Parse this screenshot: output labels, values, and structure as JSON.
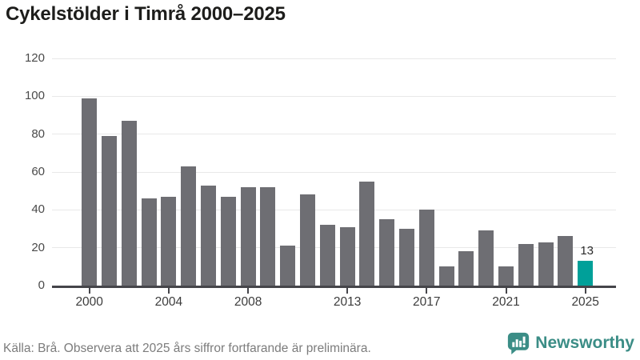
{
  "title": "Cykelstölder i Timrå 2000–2025",
  "chart_data": {
    "type": "bar",
    "title": "Cykelstölder i Timrå 2000–2025",
    "x": [
      2000,
      2001,
      2002,
      2003,
      2004,
      2005,
      2006,
      2007,
      2008,
      2009,
      2010,
      2011,
      2012,
      2013,
      2014,
      2015,
      2016,
      2017,
      2018,
      2019,
      2020,
      2021,
      2022,
      2023,
      2024,
      2025
    ],
    "values": [
      99,
      79,
      87,
      46,
      47,
      63,
      53,
      47,
      52,
      52,
      21,
      48,
      32,
      31,
      55,
      35,
      30,
      40,
      10,
      18,
      29,
      10,
      22,
      23,
      26,
      13
    ],
    "highlight_index": 25,
    "highlight_label": "13",
    "xlabel": "",
    "ylabel": "",
    "ylim": [
      0,
      120
    ],
    "yticks": [
      0,
      20,
      40,
      60,
      80,
      100,
      120
    ],
    "xtick_labels": [
      "2000",
      "2004",
      "2008",
      "2013",
      "2017",
      "2021",
      "2025"
    ],
    "grid": true,
    "legend_position": "none",
    "bar_color": "#6e6e73",
    "highlight_color": "#00a099",
    "grid_color": "#e8e8e8",
    "axis_color": "#45454a"
  },
  "footer": {
    "source_text": "Källa: Brå. Observera att 2025 års siffror fortfarande är preliminära."
  },
  "branding": {
    "logo_text": "Newsworthy",
    "logo_color": "#3b8d86"
  }
}
